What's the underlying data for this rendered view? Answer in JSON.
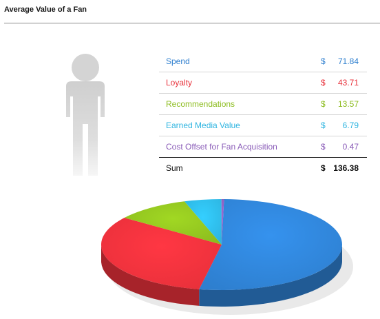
{
  "title": "Average Value of a Fan",
  "chart_data": {
    "type": "pie",
    "title": "Average Value of a Fan",
    "currency": "$",
    "series": [
      {
        "name": "Spend",
        "value": 71.84,
        "color": "#2e7fcf"
      },
      {
        "name": "Loyalty",
        "value": 43.71,
        "color": "#e8303a"
      },
      {
        "name": "Recommendations",
        "value": 13.57,
        "color": "#8cbc1e"
      },
      {
        "name": "Earned Media Value",
        "value": 6.79,
        "color": "#2db4e0"
      },
      {
        "name": "Cost Offset for Fan Acquisition",
        "value": 0.47,
        "color": "#8a5cb8"
      }
    ],
    "sum_label": "Sum",
    "sum_value": "136.38"
  },
  "table": {
    "rows": [
      {
        "label": "Spend",
        "currency": "$",
        "value": "71.84"
      },
      {
        "label": "Loyalty",
        "currency": "$",
        "value": "43.71"
      },
      {
        "label": "Recommendations",
        "currency": "$",
        "value": "13.57"
      },
      {
        "label": "Earned Media Value",
        "currency": "$",
        "value": "6.79"
      },
      {
        "label": "Cost Offset for Fan Acquisition",
        "currency": "$",
        "value": "0.47"
      }
    ],
    "sum": {
      "label": "Sum",
      "currency": "$",
      "value": "136.38"
    }
  },
  "icons": {
    "person": "person-silhouette-icon"
  }
}
